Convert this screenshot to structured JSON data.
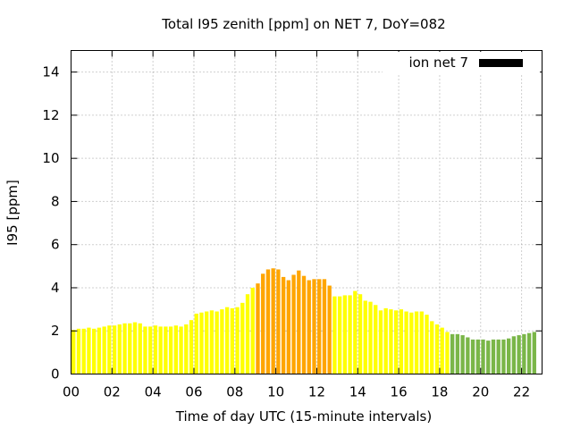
{
  "chart_data": {
    "type": "bar",
    "title": "Total I95 zenith [ppm] on NET 7, DoY=082",
    "xlabel": "Time of day UTC (15-minute intervals)",
    "ylabel": "I95 [ppm]",
    "ylim": [
      0,
      15
    ],
    "xlim": [
      0,
      23
    ],
    "grid": true,
    "legend_position": "top-right",
    "legend": [
      {
        "name": "ion net 7",
        "color": "#000000"
      }
    ],
    "x_ticks": [
      "00",
      "02",
      "04",
      "06",
      "08",
      "10",
      "12",
      "14",
      "16",
      "18",
      "20",
      "22"
    ],
    "y_ticks": [
      "0",
      "2",
      "4",
      "6",
      "8",
      "10",
      "12",
      "14"
    ],
    "bar_step_hours": 0.25,
    "bar_start_hour": 0,
    "colors": {
      "yellow": "#ffff00",
      "orange": "#ffa500",
      "green": "#7ab648"
    },
    "values": [
      2.05,
      2.1,
      2.1,
      2.15,
      2.1,
      2.15,
      2.2,
      2.25,
      2.25,
      2.3,
      2.35,
      2.35,
      2.4,
      2.35,
      2.2,
      2.2,
      2.25,
      2.2,
      2.2,
      2.2,
      2.25,
      2.2,
      2.3,
      2.5,
      2.8,
      2.85,
      2.9,
      2.95,
      2.9,
      3.0,
      3.1,
      3.05,
      3.1,
      3.3,
      3.7,
      4.0,
      4.2,
      4.65,
      4.85,
      4.9,
      4.85,
      4.5,
      4.35,
      4.6,
      4.8,
      4.55,
      4.35,
      4.4,
      4.4,
      4.4,
      4.1,
      3.6,
      3.6,
      3.65,
      3.65,
      3.85,
      3.7,
      3.4,
      3.35,
      3.2,
      2.95,
      3.05,
      3.0,
      2.95,
      3.0,
      2.9,
      2.85,
      2.9,
      2.9,
      2.75,
      2.45,
      2.3,
      2.15,
      1.95,
      1.85,
      1.85,
      1.8,
      1.7,
      1.6,
      1.6,
      1.6,
      1.55,
      1.6,
      1.6,
      1.6,
      1.65,
      1.75,
      1.8,
      1.85,
      1.9,
      1.95
    ],
    "color_segments": [
      {
        "from_index": 0,
        "to_index": 35,
        "color": "yellow"
      },
      {
        "from_index": 36,
        "to_index": 50,
        "color": "orange"
      },
      {
        "from_index": 51,
        "to_index": 73,
        "color": "yellow"
      },
      {
        "from_index": 74,
        "to_index": 90,
        "color": "green"
      }
    ]
  }
}
